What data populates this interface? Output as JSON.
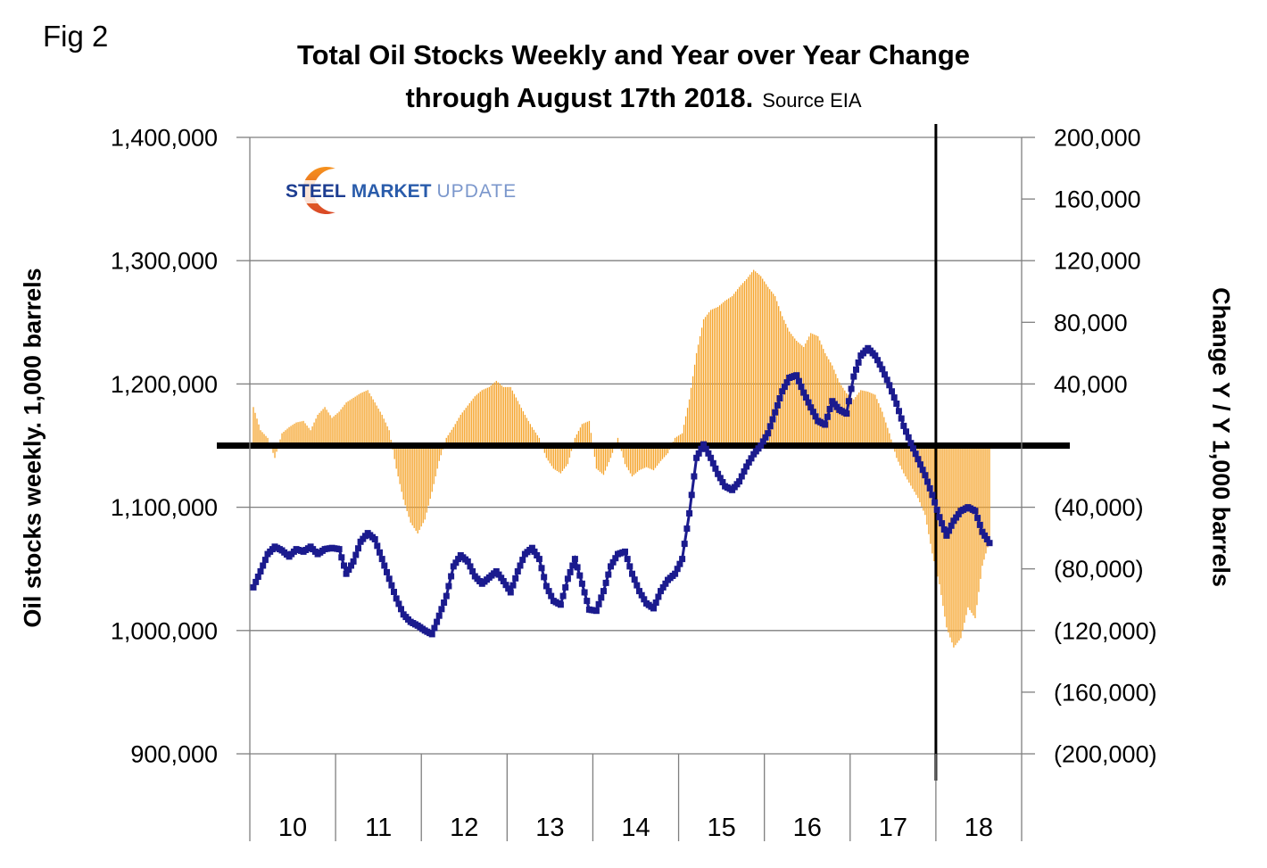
{
  "fig_label": "Fig 2",
  "title": {
    "line1": "Total Oil Stocks Weekly and Year over Year Change",
    "line2": "through August 17th 2018.",
    "source": "Source EIA"
  },
  "logo": {
    "steel": "STEEL",
    "market": "MARKET",
    "update": "UPDATE"
  },
  "left_axis": {
    "title": "Oil stocks weekly. 1,000 barrels",
    "ticks": [
      {
        "label": "1,400,000",
        "value": 1400000
      },
      {
        "label": "1,300,000",
        "value": 1300000
      },
      {
        "label": "1,200,000",
        "value": 1200000
      },
      {
        "label": "1,100,000",
        "value": 1100000
      },
      {
        "label": "1,000,000",
        "value": 1000000
      },
      {
        "label": "900,000",
        "value": 900000
      }
    ]
  },
  "right_axis": {
    "title": "Change Y / Y 1,000 barrels",
    "ticks": [
      {
        "label": "200,000",
        "value": 200000
      },
      {
        "label": "160,000",
        "value": 160000
      },
      {
        "label": "120,000",
        "value": 120000
      },
      {
        "label": "80,000",
        "value": 80000
      },
      {
        "label": "40,000",
        "value": 40000
      },
      {
        "label": "(40,000)",
        "value": -40000
      },
      {
        "label": "(80,000)",
        "value": -80000
      },
      {
        "label": "(120,000)",
        "value": -120000
      },
      {
        "label": "(160,000)",
        "value": -160000
      },
      {
        "label": "(200,000)",
        "value": -200000
      }
    ]
  },
  "x_axis": {
    "labels": [
      "10",
      "11",
      "12",
      "13",
      "14",
      "15",
      "16",
      "17",
      "18"
    ]
  },
  "palette": {
    "bar_orange": "#F5A42C",
    "line_navy": "#1B1B8E",
    "gridline_gray": "#7F7F7F",
    "annotation_black": "#000000"
  },
  "chart_data": {
    "type": "combo",
    "title": "Total Oil Stocks Weekly and Year over Year Change through August 17th 2018",
    "source": "EIA",
    "left_range": [
      900000,
      1400000
    ],
    "right_range": [
      -200000,
      200000
    ],
    "x_range_years": [
      2010,
      2019
    ],
    "grid": "horizontal-only",
    "legend": "none",
    "series": [
      {
        "name": "Oil stocks weekly (left axis)",
        "type": "line",
        "axis": "left",
        "color": "#1B1B8E",
        "marker": "square",
        "unit_multiplier": 1000,
        "values_by_year": {
          "2010": [
            1035,
            1048,
            1062,
            1068,
            1065,
            1060,
            1066,
            1064,
            1068,
            1062,
            1066,
            1067
          ],
          "2011": [
            1066,
            1046,
            1056,
            1072,
            1079,
            1074,
            1058,
            1042,
            1026,
            1013,
            1007,
            1004
          ],
          "2012": [
            1000,
            997,
            1012,
            1028,
            1052,
            1061,
            1056,
            1044,
            1038,
            1043,
            1048,
            1040
          ],
          "2013": [
            1031,
            1048,
            1062,
            1067,
            1058,
            1036,
            1024,
            1021,
            1042,
            1058,
            1038,
            1017
          ],
          "2014": [
            1016,
            1032,
            1052,
            1062,
            1064,
            1046,
            1032,
            1022,
            1018,
            1032,
            1041,
            1046
          ],
          "2015": [
            1058,
            1095,
            1140,
            1151,
            1140,
            1127,
            1117,
            1114,
            1121,
            1133,
            1143,
            1150
          ],
          "2016": [
            1160,
            1177,
            1194,
            1205,
            1207,
            1193,
            1181,
            1170,
            1167,
            1186,
            1179,
            1176
          ],
          "2017": [
            1206,
            1223,
            1229,
            1223,
            1212,
            1199,
            1184,
            1166,
            1152,
            1139,
            1126,
            1110
          ],
          "2018": [
            1092,
            1077,
            1089,
            1097,
            1100,
            1097,
            1080,
            1071
          ]
        }
      },
      {
        "name": "Year over year change (right axis)",
        "type": "bar",
        "axis": "right",
        "color": "#F5A42C",
        "unit_multiplier": 1000,
        "values_by_year": {
          "2010": [
            25,
            10,
            5,
            -8,
            8,
            12,
            15,
            16,
            10,
            20,
            25,
            18
          ],
          "2011": [
            22,
            28,
            31,
            34,
            36,
            28,
            20,
            10,
            -15,
            -35,
            -50,
            -57
          ],
          "2012": [
            -48,
            -30,
            -10,
            5,
            12,
            20,
            26,
            32,
            36,
            38,
            42,
            38
          ],
          "2013": [
            38,
            29,
            20,
            12,
            5,
            -8,
            -15,
            -18,
            -12,
            5,
            14,
            16
          ],
          "2014": [
            -15,
            -19,
            -8,
            5,
            -12,
            -20,
            -16,
            -14,
            -16,
            -10,
            -5,
            5
          ],
          "2015": [
            8,
            30,
            60,
            82,
            88,
            90,
            94,
            97,
            103,
            108,
            114,
            110
          ],
          "2016": [
            103,
            97,
            84,
            74,
            68,
            64,
            73,
            71,
            60,
            52,
            41,
            34
          ],
          "2017": [
            30,
            36,
            35,
            33,
            22,
            8,
            -8,
            -18,
            -26,
            -34,
            -45,
            -70
          ],
          "2018": [
            -90,
            -118,
            -131,
            -125,
            -105,
            -112,
            -78,
            -62
          ]
        }
      }
    ],
    "annotations": {
      "zero_change_line": {
        "axis": "right",
        "value": 0,
        "color": "#000000"
      },
      "vertical_marker": {
        "x_year": 2018.0,
        "color": "#000000"
      }
    }
  }
}
